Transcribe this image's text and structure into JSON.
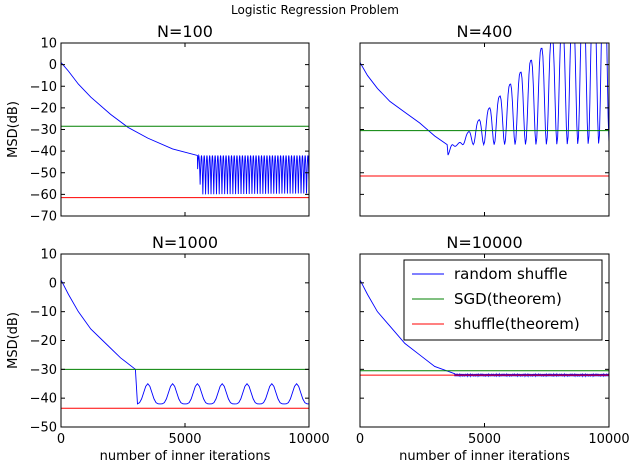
{
  "figure": {
    "title": "Logistic Regression Problem"
  },
  "chart_data": [
    {
      "type": "line",
      "title": "N=100",
      "xlabel": "",
      "ylabel": "MSD(dB)",
      "xlim": [
        0,
        10000
      ],
      "ylim": [
        -70,
        10
      ],
      "xticks": [],
      "yticks": [
        "10",
        "0",
        "−10",
        "−20",
        "−30",
        "−40",
        "−50",
        "−60",
        "−70"
      ],
      "series": [
        {
          "key": "random_shuffle",
          "color": "#0000ff",
          "decay_end_x": 5700,
          "ceiling_y": -42,
          "floor_y": -60,
          "curve": [
            [
              0,
              1
            ],
            [
              300,
              -3
            ],
            [
              700,
              -9
            ],
            [
              1200,
              -15
            ],
            [
              2000,
              -23
            ],
            [
              2700,
              -29
            ],
            [
              3500,
              -34
            ],
            [
              4500,
              -39
            ],
            [
              5500,
              -42
            ]
          ]
        },
        {
          "key": "sgd_theorem",
          "color": "#008000",
          "y": -28.5
        },
        {
          "key": "shuffle_theorem",
          "color": "#ff0000",
          "y": -61.5
        }
      ]
    },
    {
      "type": "line",
      "title": "N=400",
      "xlabel": "",
      "ylabel": "",
      "xlim": [
        0,
        10000
      ],
      "ylim": [
        -70,
        10
      ],
      "xticks": [],
      "yticks": [],
      "series": [
        {
          "key": "random_shuffle",
          "color": "#0000ff",
          "decay_end_x": 3000,
          "ceiling_y": -37,
          "floor_y": -49,
          "curve": [
            [
              0,
              1
            ],
            [
              300,
              -5
            ],
            [
              700,
              -11
            ],
            [
              1200,
              -17
            ],
            [
              1800,
              -22
            ],
            [
              2400,
              -27
            ],
            [
              3000,
              -33
            ],
            [
              3500,
              -37
            ]
          ]
        },
        {
          "key": "sgd_theorem",
          "color": "#008000",
          "y": -30.5
        },
        {
          "key": "shuffle_theorem",
          "color": "#ff0000",
          "y": -51.5
        }
      ]
    },
    {
      "type": "line",
      "title": "N=1000",
      "xlabel": "number of inner iterations",
      "ylabel": "MSD(dB)",
      "xlim": [
        0,
        10000
      ],
      "ylim": [
        -50,
        10
      ],
      "xticks": [
        "0",
        "5000",
        "10000"
      ],
      "yticks": [
        "10",
        "0",
        "−10",
        "−20",
        "−30",
        "−40",
        "−50"
      ],
      "series": [
        {
          "key": "random_shuffle",
          "color": "#0000ff",
          "decay_end_x": 3000,
          "ceiling_y": -35,
          "floor_y": -42,
          "curve": [
            [
              0,
              1
            ],
            [
              300,
              -4
            ],
            [
              700,
              -10
            ],
            [
              1200,
              -16
            ],
            [
              1800,
              -21
            ],
            [
              2400,
              -26
            ],
            [
              3000,
              -30
            ]
          ]
        },
        {
          "key": "sgd_theorem",
          "color": "#008000",
          "y": -30
        },
        {
          "key": "shuffle_theorem",
          "color": "#ff0000",
          "y": -43.5
        }
      ]
    },
    {
      "type": "line",
      "title": "N=10000",
      "xlabel": "number of inner iterations",
      "ylabel": "",
      "xlim": [
        0,
        10000
      ],
      "ylim": [
        -50,
        10
      ],
      "xticks": [
        "0",
        "5000",
        "10000"
      ],
      "yticks": [],
      "legend": {
        "placement": "top-right",
        "entries": [
          {
            "key": "random_shuffle",
            "label": "random shuffle",
            "color": "#0000ff"
          },
          {
            "key": "sgd_theorem",
            "label": "SGD(theorem)",
            "color": "#008000"
          },
          {
            "key": "shuffle_theorem",
            "label": "shuffle(theorem)",
            "color": "#ff0000"
          }
        ]
      },
      "series": [
        {
          "key": "random_shuffle",
          "color": "#0000ff",
          "decay_end_x": 3800,
          "ceiling_y": -31.6,
          "floor_y": -32.4,
          "curve": [
            [
              0,
              1
            ],
            [
              300,
              -4
            ],
            [
              700,
              -10
            ],
            [
              1200,
              -15
            ],
            [
              1800,
              -21
            ],
            [
              2400,
              -25
            ],
            [
              3000,
              -29
            ],
            [
              3800,
              -31.5
            ]
          ]
        },
        {
          "key": "sgd_theorem",
          "color": "#008000",
          "y": -30.5
        },
        {
          "key": "shuffle_theorem",
          "color": "#ff0000",
          "y": -32
        }
      ]
    }
  ]
}
